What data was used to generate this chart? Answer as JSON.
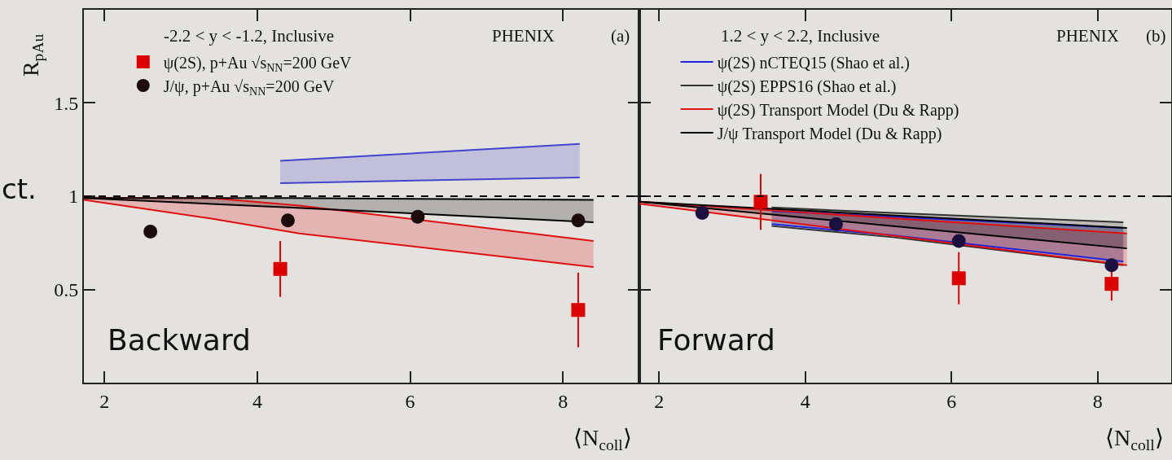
{
  "chart_data": [
    {
      "type": "scatter",
      "xlabel": "⟨N$_{coll}$⟩",
      "ylabel": "R$_{pAu}$",
      "xlim": [
        1.73,
        9.0
      ],
      "ylim": [
        0,
        2
      ],
      "xticks": [
        2,
        4,
        6,
        8
      ],
      "yticks": [
        0.5,
        1,
        1.5
      ],
      "legend": "top left",
      "grid": false,
      "annotations": [
        "-2.2 < y < -1.2, Inclusive",
        "PHENIX",
        "(a)",
        "Backward",
        "ct."
      ],
      "ref_lines": [
        {
          "axis": "y",
          "value": 1,
          "line_style": "dashed",
          "color": "#000000"
        }
      ],
      "series": [
        {
          "type": "line",
          "color": "#4444cc",
          "x": [
            4.3,
            8.22
          ],
          "values": [
            1.19,
            1.28
          ],
          "lower": [
            1.07,
            1.1
          ],
          "upper": [
            1.19,
            1.28
          ]
        },
        {
          "type": "line",
          "color": "#4444cc",
          "x": [
            4.3,
            8.22
          ],
          "values": [
            1.07,
            1.1
          ]
        },
        {
          "type": "line",
          "color": "#dd1111",
          "x": [
            1.73,
            3.4,
            4.55,
            8.4
          ],
          "values": [
            0.99,
            0.99,
            0.95,
            0.76
          ],
          "lower": [
            0.98,
            0.88,
            0.8,
            0.62
          ],
          "upper": [
            0.99,
            0.99,
            0.95,
            0.76
          ]
        },
        {
          "type": "line",
          "color": "#dd1111",
          "x": [
            1.73,
            3.4,
            4.55,
            8.4
          ],
          "values": [
            0.98,
            0.88,
            0.8,
            0.62
          ]
        },
        {
          "type": "line",
          "color": "#000000",
          "x": [
            1.73,
            4.4,
            8.4
          ],
          "values": [
            0.99,
            0.99,
            0.98
          ],
          "lower": [
            0.99,
            0.94,
            0.86
          ],
          "upper": [
            0.99,
            0.99,
            0.98
          ]
        },
        {
          "type": "line",
          "color": "#000000",
          "x": [
            1.73,
            4.4,
            8.4
          ],
          "values": [
            0.99,
            0.94,
            0.86
          ]
        },
        {
          "type": "scatter",
          "name": "ψ(2S), p+Au √s$_{NN}$=200 GeV",
          "color": "#dd0000",
          "marker": "square",
          "x": [
            4.3,
            8.2
          ],
          "values": [
            0.61,
            0.39
          ],
          "errors": [
            0.15,
            0.2
          ]
        },
        {
          "type": "scatter",
          "name": "J/ψ, p+Au √s$_{NN}$=200 GeV",
          "color": "#1c0c0c",
          "marker": "circle",
          "x": [
            2.6,
            4.4,
            6.1,
            8.2
          ],
          "values": [
            0.81,
            0.87,
            0.89,
            0.87
          ],
          "errors": [
            0.03,
            0.03,
            0.02,
            0.02
          ]
        }
      ]
    },
    {
      "type": "scatter",
      "xlabel": "⟨N$_{coll}$⟩",
      "xlim": [
        1.73,
        9.0
      ],
      "ylim": [
        0,
        2
      ],
      "xticks": [
        2,
        4,
        6,
        8
      ],
      "yticks": [
        0.5,
        1,
        1.5
      ],
      "tick_labels": "x",
      "legend": "top left",
      "grid": false,
      "annotations": [
        "1.2 < y < 2.2, Inclusive",
        "PHENIX",
        "(b)",
        "Forward"
      ],
      "ref_lines": [
        {
          "axis": "y",
          "value": 1,
          "line_style": "dashed",
          "color": "#000000"
        }
      ],
      "series": [
        {
          "type": "line",
          "name": "ψ(2S) nCTEQ15 (Shao et al.)",
          "color": "#2222dd",
          "x": [
            3.54,
            5.2,
            8.35
          ],
          "values": [
            0.92,
            0.89,
            0.83
          ],
          "lower": [
            0.85,
            0.79,
            0.65
          ],
          "upper": [
            0.92,
            0.89,
            0.83
          ]
        },
        {
          "type": "line",
          "color": "#2222dd",
          "x": [
            3.54,
            5.2,
            8.35
          ],
          "values": [
            0.85,
            0.79,
            0.65
          ]
        },
        {
          "type": "line",
          "name": "ψ(2S) EPPS16 (Shao et al.)",
          "color": "#333333",
          "x": [
            3.54,
            5.2,
            8.35
          ],
          "values": [
            0.94,
            0.91,
            0.86
          ],
          "lower": [
            0.84,
            0.78,
            0.63
          ],
          "upper": [
            0.94,
            0.91,
            0.86
          ]
        },
        {
          "type": "line",
          "color": "#333333",
          "x": [
            3.54,
            5.2,
            8.35
          ],
          "values": [
            0.84,
            0.78,
            0.63
          ]
        },
        {
          "type": "line",
          "name": "ψ(2S) Transport Model (Du & Rapp)",
          "color": "#dd1111",
          "x": [
            1.73,
            8.4
          ],
          "values": [
            0.97,
            0.8
          ],
          "lower": [
            0.96,
            0.63
          ],
          "upper": [
            0.97,
            0.8
          ]
        },
        {
          "type": "line",
          "color": "#dd1111",
          "x": [
            1.73,
            8.4
          ],
          "values": [
            0.96,
            0.63
          ]
        },
        {
          "type": "line",
          "name": "J/ψ Transport Model (Du & Rapp)",
          "color": "#000000",
          "x": [
            1.73,
            8.4
          ],
          "values": [
            0.97,
            0.83
          ],
          "lower": [
            0.97,
            0.72
          ],
          "upper": [
            0.97,
            0.83
          ]
        },
        {
          "type": "line",
          "color": "#000000",
          "x": [
            1.73,
            8.4
          ],
          "values": [
            0.97,
            0.72
          ]
        },
        {
          "type": "scatter",
          "color": "#dd0000",
          "marker": "square",
          "x": [
            3.39,
            6.1,
            8.19
          ],
          "values": [
            0.97,
            0.56,
            0.53
          ],
          "errors": [
            0.15,
            0.14,
            0.09
          ]
        },
        {
          "type": "scatter",
          "color": "#1a1040",
          "marker": "circle",
          "x": [
            2.59,
            4.42,
            6.1,
            8.19
          ],
          "values": [
            0.91,
            0.85,
            0.76,
            0.63
          ],
          "errors": [
            0.03,
            0.02,
            0.03,
            0.03
          ]
        }
      ]
    }
  ]
}
